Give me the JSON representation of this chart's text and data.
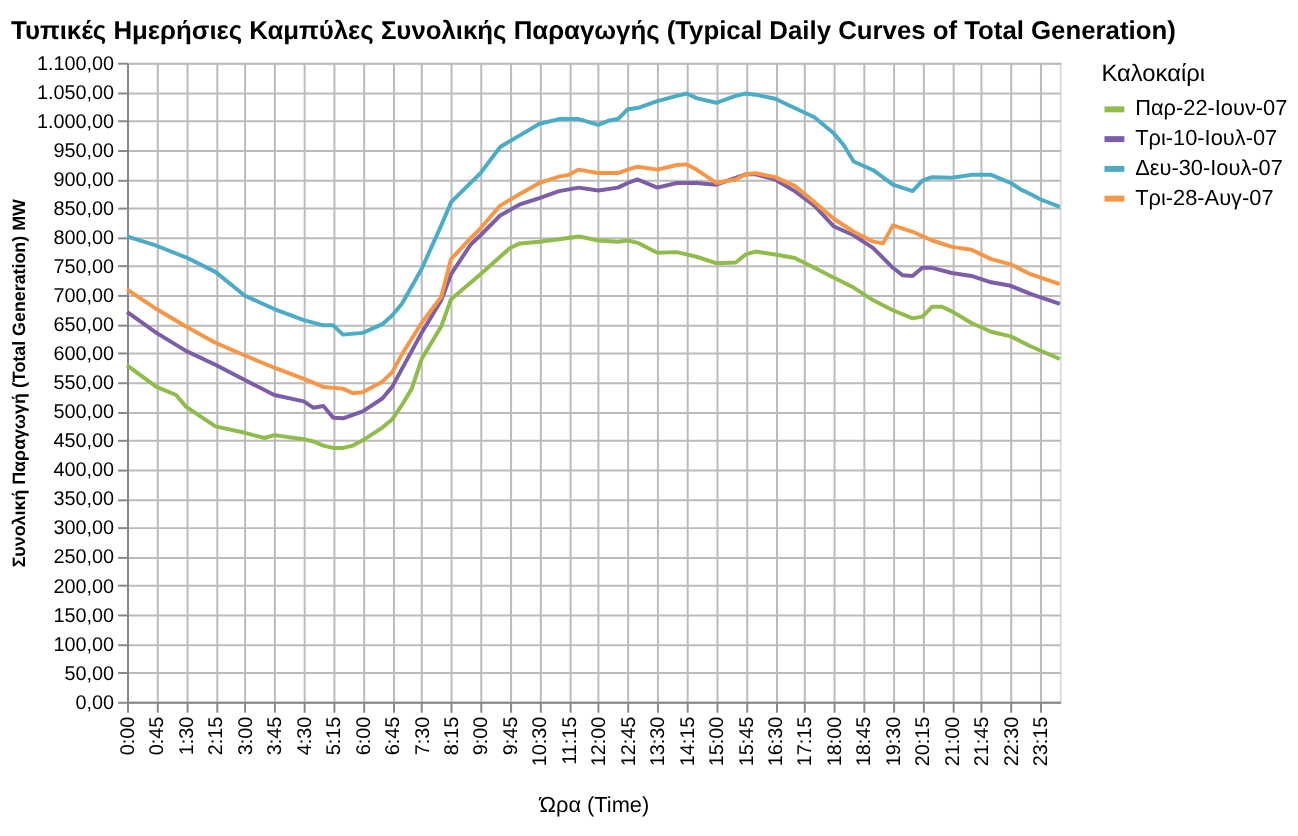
{
  "chart_data": {
    "type": "line",
    "title": "Τυπικές Ημερήσιες Καμπύλες Συνολικής Παραγωγής (Typical Daily Curves of Total Generation)",
    "xlabel": "Ώρα (Time)",
    "ylabel": "Συνολική Παραγωγή  (Total Generation) MW",
    "legend_title": "Καλοκαίρι",
    "legend": "right",
    "grid": true,
    "marker": "none",
    "line_style": "solid",
    "xlim": [
      0,
      23.75
    ],
    "ylim": [
      0,
      1100
    ],
    "xticks": [
      {
        "value": 0,
        "label": "0:00"
      },
      {
        "value": 0.75,
        "label": "0:45"
      },
      {
        "value": 1.5,
        "label": "1:30"
      },
      {
        "value": 2.25,
        "label": "2:15"
      },
      {
        "value": 3,
        "label": "3:00"
      },
      {
        "value": 3.75,
        "label": "3:45"
      },
      {
        "value": 4.5,
        "label": "4:30"
      },
      {
        "value": 5.25,
        "label": "5:15"
      },
      {
        "value": 6,
        "label": "6:00"
      },
      {
        "value": 6.75,
        "label": "6:45"
      },
      {
        "value": 7.5,
        "label": "7:30"
      },
      {
        "value": 8.25,
        "label": "8:15"
      },
      {
        "value": 9,
        "label": "9:00"
      },
      {
        "value": 9.75,
        "label": "9:45"
      },
      {
        "value": 10.5,
        "label": "10:30"
      },
      {
        "value": 11.25,
        "label": "11:15"
      },
      {
        "value": 12,
        "label": "12:00"
      },
      {
        "value": 12.75,
        "label": "12:45"
      },
      {
        "value": 13.5,
        "label": "13:30"
      },
      {
        "value": 14.25,
        "label": "14:15"
      },
      {
        "value": 15,
        "label": "15:00"
      },
      {
        "value": 15.75,
        "label": "15:45"
      },
      {
        "value": 16.5,
        "label": "16:30"
      },
      {
        "value": 17.25,
        "label": "17:15"
      },
      {
        "value": 18,
        "label": "18:00"
      },
      {
        "value": 18.75,
        "label": "18:45"
      },
      {
        "value": 19.5,
        "label": "19:30"
      },
      {
        "value": 20.25,
        "label": "20:15"
      },
      {
        "value": 21,
        "label": "21:00"
      },
      {
        "value": 21.75,
        "label": "21:45"
      },
      {
        "value": 22.5,
        "label": "22:30"
      },
      {
        "value": 23.25,
        "label": "23:15"
      }
    ],
    "yticks": [
      {
        "value": 0,
        "label": "0,00"
      },
      {
        "value": 50,
        "label": "50,00"
      },
      {
        "value": 100,
        "label": "100,00"
      },
      {
        "value": 150,
        "label": "150,00"
      },
      {
        "value": 200,
        "label": "200,00"
      },
      {
        "value": 250,
        "label": "250,00"
      },
      {
        "value": 300,
        "label": "300,00"
      },
      {
        "value": 350,
        "label": "350,00"
      },
      {
        "value": 400,
        "label": "400,00"
      },
      {
        "value": 450,
        "label": "450,00"
      },
      {
        "value": 500,
        "label": "500,00"
      },
      {
        "value": 550,
        "label": "550,00"
      },
      {
        "value": 600,
        "label": "600,00"
      },
      {
        "value": 650,
        "label": "650,00"
      },
      {
        "value": 700,
        "label": "700,00"
      },
      {
        "value": 750,
        "label": "750,00"
      },
      {
        "value": 800,
        "label": "800,00"
      },
      {
        "value": 850,
        "label": "850,00"
      },
      {
        "value": 900,
        "label": "900,00"
      },
      {
        "value": 950,
        "label": "950,00"
      },
      {
        "value": 1000,
        "label": "1.000,00"
      },
      {
        "value": 1050,
        "label": "1.050,00"
      },
      {
        "value": 1100,
        "label": "1.100,00"
      }
    ],
    "series": [
      {
        "name": "Παρ-22-Ιουν-07",
        "color": "#8fbc4a",
        "x": [
          0,
          0.75,
          1.25,
          1.5,
          2.25,
          3,
          3.5,
          3.75,
          4.5,
          4.75,
          5,
          5.25,
          5.5,
          5.75,
          6,
          6.5,
          6.75,
          7,
          7.25,
          7.5,
          8,
          8.25,
          9,
          9.5,
          9.75,
          10,
          10.5,
          11,
          11.5,
          12,
          12.5,
          12.75,
          13,
          13.5,
          14,
          14.5,
          15,
          15.5,
          15.75,
          16,
          16.5,
          17,
          17.5,
          18,
          18.5,
          19,
          19.5,
          20,
          20.25,
          20.5,
          20.75,
          21,
          21.5,
          22,
          22.5,
          23,
          23.75
        ],
        "values": [
          579,
          542,
          528,
          508,
          474,
          463,
          454,
          459,
          452,
          448,
          441,
          437,
          437,
          441,
          450,
          472,
          486,
          511,
          539,
          590,
          646,
          693,
          736,
          766,
          781,
          789,
          792,
          796,
          801,
          794,
          792,
          794,
          790,
          773,
          774,
          766,
          755,
          756,
          770,
          775,
          770,
          764,
          747,
          730,
          713,
          691,
          674,
          660,
          663,
          680,
          680,
          672,
          652,
          637,
          629,
          612,
          590
        ]
      },
      {
        "name": "Τρι-10-Ιουλ-07",
        "color": "#7b5ea7",
        "x": [
          0,
          0.75,
          1.5,
          2.25,
          3,
          3.75,
          4.5,
          4.75,
          5,
          5.25,
          5.5,
          6,
          6.5,
          6.75,
          7,
          7.5,
          8,
          8.25,
          8.75,
          9,
          9.5,
          10,
          10.5,
          11,
          11.5,
          12,
          12.5,
          12.75,
          13,
          13.5,
          14,
          14.5,
          15,
          15.75,
          16,
          16.5,
          17,
          17.5,
          18,
          18.5,
          19,
          19.5,
          19.75,
          20,
          20.25,
          20.5,
          21,
          21.5,
          22,
          22.5,
          23,
          23.75
        ],
        "values": [
          671,
          635,
          604,
          580,
          554,
          528,
          517,
          506,
          509,
          489,
          488,
          500,
          522,
          542,
          573,
          635,
          691,
          736,
          787,
          803,
          837,
          856,
          867,
          879,
          885,
          880,
          885,
          893,
          899,
          885,
          893,
          893,
          890,
          908,
          908,
          899,
          879,
          854,
          818,
          803,
          781,
          747,
          734,
          733,
          747,
          747,
          738,
          733,
          722,
          716,
          702,
          685
        ]
      },
      {
        "name": "Δευ-30-Ιουλ-07",
        "color": "#4bacc6",
        "x": [
          0,
          0.75,
          1.5,
          2.25,
          3,
          3.75,
          4.5,
          5,
          5.25,
          5.5,
          6,
          6.5,
          6.75,
          7,
          7.5,
          8,
          8.25,
          9,
          9.5,
          10,
          10.5,
          11,
          11.5,
          12,
          12.25,
          12.5,
          12.75,
          13,
          13.5,
          14,
          14.25,
          14.5,
          15,
          15.5,
          15.75,
          16,
          16.5,
          17,
          17.5,
          18,
          18.25,
          18.5,
          19,
          19.5,
          20,
          20.25,
          20.5,
          21,
          21.5,
          22,
          22.5,
          22.75,
          23,
          23.25,
          23.75
        ],
        "values": [
          801,
          785,
          765,
          740,
          699,
          676,
          657,
          648,
          648,
          632,
          635,
          650,
          665,
          685,
          745,
          820,
          860,
          910,
          955,
          975,
          995,
          1003,
          1003,
          993,
          1000,
          1003,
          1020,
          1022,
          1034,
          1043,
          1047,
          1039,
          1031,
          1043,
          1047,
          1045,
          1038,
          1022,
          1006,
          978,
          958,
          930,
          915,
          890,
          879,
          897,
          903,
          902,
          907,
          907,
          893,
          882,
          874,
          865,
          852
        ]
      },
      {
        "name": "Τρι-28-Αυγ-07",
        "color": "#f79646",
        "x": [
          0,
          0.75,
          1.5,
          2.25,
          3,
          3.75,
          4.5,
          5,
          5.5,
          5.75,
          6,
          6.5,
          6.75,
          7,
          7.5,
          8,
          8.25,
          8.75,
          9,
          9.5,
          10,
          10.5,
          11,
          11.25,
          11.5,
          12,
          12.5,
          12.75,
          13,
          13.5,
          14,
          14.25,
          14.5,
          15,
          15.5,
          15.75,
          16,
          16.5,
          17,
          17.5,
          18,
          18.5,
          19,
          19.25,
          19.5,
          20,
          20.5,
          21,
          21.5,
          22,
          22.5,
          23,
          23.75
        ],
        "values": [
          710,
          676,
          646,
          618,
          596,
          575,
          556,
          542,
          539,
          531,
          533,
          551,
          567,
          598,
          652,
          697,
          762,
          798,
          815,
          854,
          874,
          893,
          904,
          907,
          916,
          910,
          910,
          916,
          921,
          916,
          924,
          925,
          916,
          893,
          899,
          908,
          910,
          903,
          888,
          860,
          831,
          809,
          792,
          789,
          820,
          809,
          794,
          783,
          778,
          762,
          753,
          736,
          719
        ]
      }
    ]
  }
}
